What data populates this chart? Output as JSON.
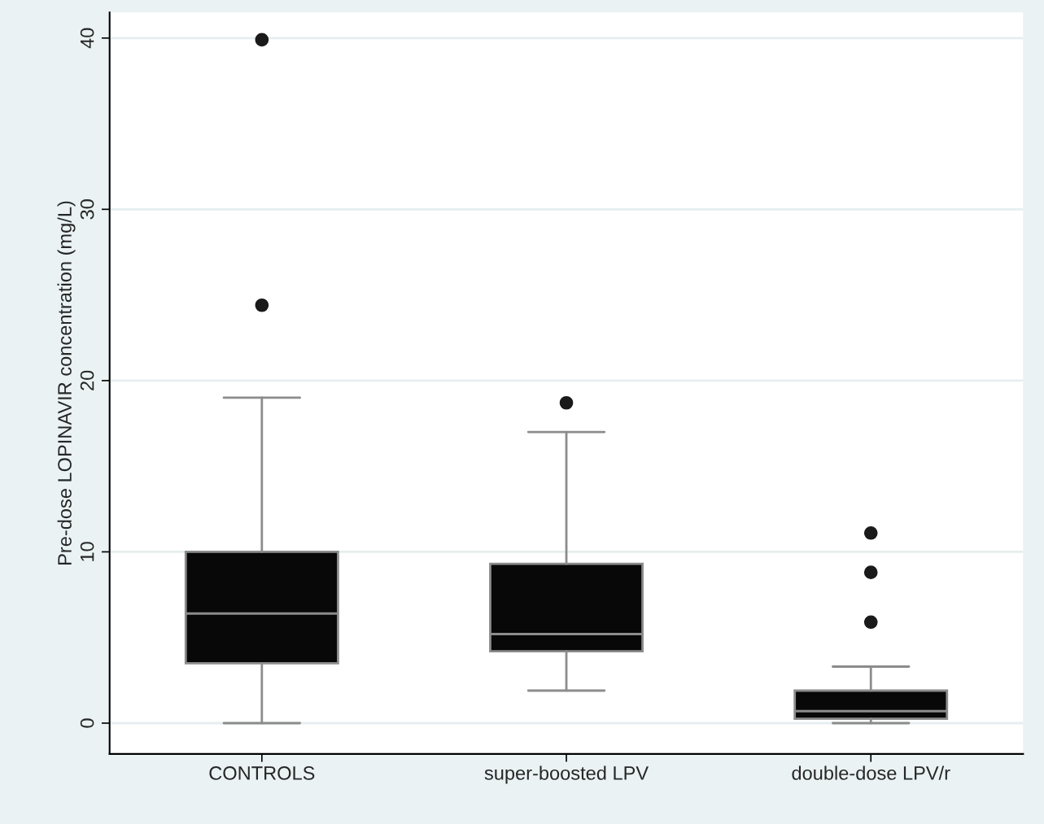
{
  "chart_data": {
    "type": "box",
    "ylabel": "Pre-dose LOPINAVIR concentration (mg/L)",
    "categories": [
      "CONTROLS",
      "super-boosted LPV",
      "double-dose LPV/r"
    ],
    "boxes": [
      {
        "low": 0,
        "q1": 3.5,
        "median": 6.4,
        "q3": 10.0,
        "high": 19.0,
        "outliers": [
          39.9,
          24.4
        ]
      },
      {
        "low": 1.9,
        "q1": 4.2,
        "median": 5.2,
        "q3": 9.3,
        "high": 17.0,
        "outliers": [
          18.7
        ]
      },
      {
        "low": 0,
        "q1": 0.25,
        "median": 0.7,
        "q3": 1.9,
        "high": 3.3,
        "outliers": [
          11.1,
          8.8,
          5.9
        ]
      }
    ],
    "color": "#080808",
    "ylim": [
      -1.8,
      41.5
    ],
    "yticks": [
      0,
      10,
      20,
      30,
      40
    ],
    "grid": "y",
    "legend": false
  }
}
